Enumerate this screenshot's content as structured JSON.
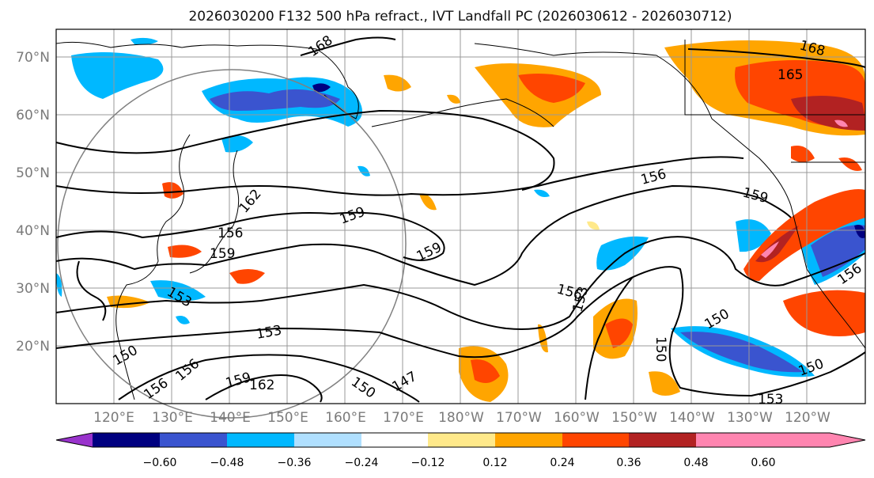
{
  "title": "2026030200 F132 500 hPa refract., IVT Landfall PC (2026030612 - 2026030712)",
  "lat_labels": [
    "70°N",
    "60°N",
    "50°N",
    "40°N",
    "30°N",
    "20°N"
  ],
  "lon_labels": [
    "120°E",
    "130°E",
    "140°E",
    "150°E",
    "160°E",
    "170°E",
    "180°W",
    "170°W",
    "160°W",
    "150°W",
    "140°W",
    "130°W",
    "120°W"
  ],
  "colorbar": {
    "ticks": [
      "−0.60",
      "−0.48",
      "−0.36",
      "−0.24",
      "−0.12",
      "0.12",
      "0.24",
      "0.36",
      "0.48",
      "0.60"
    ],
    "colors": [
      "#9933cc",
      "#000080",
      "#3a54cf",
      "#00b8ff",
      "#b0e0ff",
      "#ffffff",
      "#ffe98a",
      "#ffa500",
      "#ff4500",
      "#b22222",
      "#ff85b0",
      "#ff85b0"
    ]
  },
  "contour_labels": [
    "168",
    "168",
    "165",
    "162",
    "159",
    "159",
    "159",
    "156",
    "159",
    "156",
    "153",
    "153",
    "150",
    "150",
    "147",
    "156",
    "156",
    "153",
    "159",
    "162",
    "150",
    "150",
    "153",
    "156",
    "150",
    "156"
  ],
  "colors": {
    "axis": "#000000",
    "grid": "#999999",
    "circle": "#808080"
  }
}
